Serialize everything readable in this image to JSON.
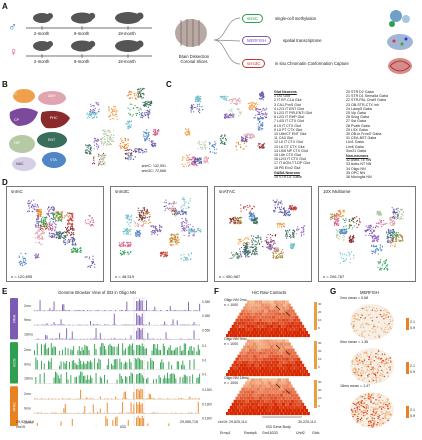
{
  "panel_labels": [
    "A",
    "B",
    "C",
    "D",
    "E",
    "F",
    "G"
  ],
  "panelA": {
    "timepoints": [
      "2-month",
      "9-month",
      "18-month"
    ],
    "dissection_label": "Brain Dissection\nCoronal Slices",
    "assays": [
      {
        "name": "snmC",
        "desc": "single-cell methylation",
        "color": "#2e9e4f"
      },
      {
        "name": "MERFISH",
        "desc": "spatial transcriptome",
        "color": "#7c5bb0"
      },
      {
        "name": "snm3C",
        "desc": "in situ Chromatin Conformation Capture",
        "color": "#c23b32"
      }
    ]
  },
  "panelB": {
    "regions": [
      "FC",
      "AMY",
      "CP",
      "PAL",
      "PHC",
      "HIP",
      "ENT",
      "NAC",
      "VTA",
      "CHPI"
    ],
    "counts": [
      "snmC: 132,551",
      "snm3C: 72,666"
    ]
  },
  "panelC": {
    "glut_header": "Glut Neurons",
    "glut": [
      "1 DG Glut",
      "2 IT EP-CLA Glut",
      "3 CA1-ProS Glut",
      "4 L2/3 IT ENT Glut",
      "5 L2/3 IT PIR-ENTI Glut",
      "6 L2/3 IT RHP Glut",
      "7 L4/5 IT CTX Glut",
      "8 L5 IT CTX Glut",
      "9 L5 PT CTX Glut",
      "10 L6b/CT ENT Glut",
      "11 CA3 Glut",
      "12 L6 IT CTX Glut",
      "13 L6 CT CTX Glut",
      "14 L5/6 NP CTX Glut",
      "15 L6b CTX Glut",
      "16 L2/3 IT CTX Glut",
      "17 IT AON-TT-DP Glut",
      "18 PB Evx2 Glut"
    ],
    "gaba_header": "GABA Neurons",
    "gaba": [
      "19 STR D1 Gaba",
      "20 STR D2 Gaba",
      "21 STR D1 Sema5a Gaba",
      "22 STR-PAL Chst9 Gaba",
      "23 OB-STR-CTX Inh",
      "24 Lamp5 Gaba",
      "25 Vip Gaba",
      "26 Sncg Gaba",
      "27 Sst Gaba",
      "28 Pvalb Gaba",
      "29 LSX Gaba",
      "30 OB-in Frmd7 Gaba",
      "31 CEA-BST Gaba"
    ],
    "nonneuron_header": "Non-neurons",
    "nonneurons": [
      "32 Astro-TE NN",
      "33 Astro-NT NN",
      "34 Oligo NN",
      "35 OPC NN",
      "36 Microglia NN"
    ],
    "extra": [
      "Lhx1 Gaba",
      "Lhx6 Gaba",
      "Sox21 Gaba"
    ]
  },
  "panelD": [
    {
      "title": "snmC",
      "n": "n = 120,695"
    },
    {
      "title": "snm3C",
      "n": "n = 48,519"
    },
    {
      "title": "snATAC",
      "n": "n = 450,987"
    },
    {
      "title": "10X Multiome",
      "n": "n = 206,787"
    }
  ],
  "panelE": {
    "title": "Genome Browser View of Il33 in Oligo NN",
    "groups": [
      {
        "name": "RNA",
        "color": "#7c5bb0",
        "tracks": [
          "2mo",
          "9mo",
          "18mo"
        ],
        "range": "0-550"
      },
      {
        "name": "mCG",
        "color": "#2e9e4f",
        "tracks": [
          "2mo",
          "9mo",
          "18mo"
        ],
        "range": "0-1"
      },
      {
        "name": "ATAC",
        "color": "#e8821e",
        "tracks": [
          "2mo",
          "9mo",
          "18mo"
        ],
        "range": "0-1300"
      }
    ],
    "coord_left": "29,920,114",
    "coord_right": "29,965,715",
    "chrom": "chr19",
    "gene": "Il33"
  },
  "panelF": {
    "title": "HiC Raw Contacts",
    "maps": [
      {
        "label": "Oligo NN 2mo",
        "n": "n = 1000"
      },
      {
        "label": "Oligo NN 9mo",
        "n": "n = 1000"
      },
      {
        "label": "Oligo NN 18mo",
        "n": "n = 1000"
      }
    ],
    "scale_values": [
      "30",
      "20",
      "10",
      "0"
    ],
    "coord_left": "chr19: 29,625,114",
    "coord_right": "30,225,114",
    "gene_body": "Il33 Gene Body",
    "genes": [
      "Ermp1",
      "Ranbp6",
      "Gm16333",
      "Uhrf2",
      "Gldc"
    ]
  },
  "panelG": {
    "title": "MERFISH",
    "sections": [
      {
        "label": "2mo mean = 0.68"
      },
      {
        "label": "9mo mean = 1.36"
      },
      {
        "label": "18mo mean = 1.47"
      }
    ],
    "scale": [
      "2.1",
      "0.9"
    ]
  }
}
